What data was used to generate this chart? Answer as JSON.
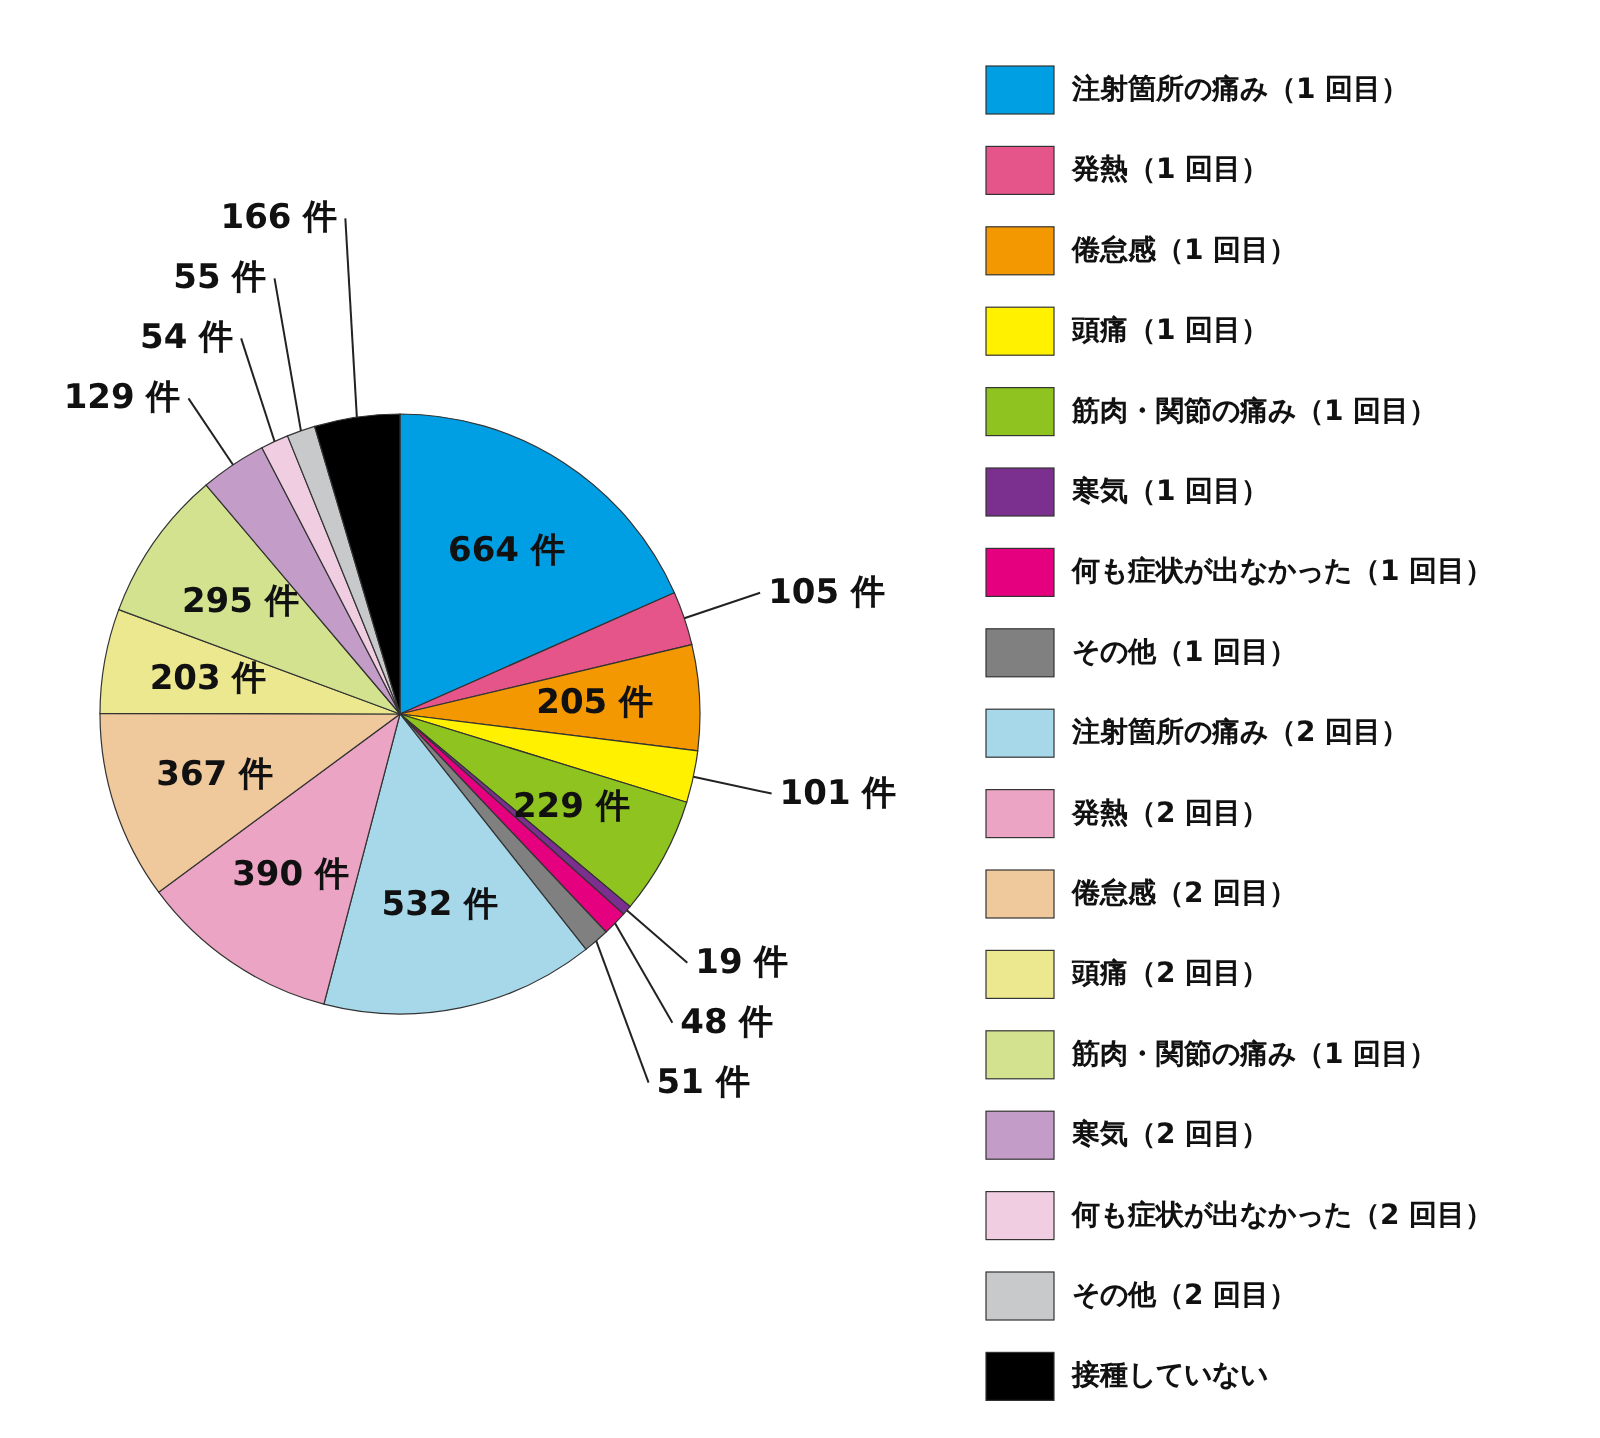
{
  "chart_data": {
    "type": "pie",
    "legend": "right",
    "categories": [
      "注射箇所の痛み（1 回目）",
      "発熱（1 回目）",
      "倦怠感（1 回目）",
      "頭痛（1 回目）",
      "筋肉・関節の痛み（1 回目）",
      "寒気（1 回目）",
      "何も症状が出なかった（1 回目）",
      "その他（1 回目）",
      "注射箇所の痛み（2 回目）",
      "発熱（2 回目）",
      "倦怠感（2 回目）",
      "頭痛（2 回目）",
      "筋肉・関節の痛み（1 回目）",
      "寒気（2 回目）",
      "何も症状が出なかった（2 回目）",
      "その他（2 回目）",
      "接種していない"
    ],
    "values": [
      664,
      105,
      205,
      101,
      229,
      19,
      48,
      51,
      532,
      390,
      367,
      203,
      295,
      129,
      54,
      55,
      166
    ],
    "value_labels": [
      "664 件",
      "105 件",
      "205 件",
      "101 件",
      "229 件",
      "19 件",
      "48 件",
      "51 件",
      "532 件",
      "390 件",
      "367 件",
      "203 件",
      "295 件",
      "129 件",
      "54 件",
      "55 件",
      "166 件"
    ],
    "colors": [
      "#009fe3",
      "#e5558a",
      "#f39800",
      "#fff100",
      "#8fc31f",
      "#7b2f8e",
      "#e4007f",
      "#808080",
      "#a6d8ea",
      "#eba4c4",
      "#efc99b",
      "#ece890",
      "#d2e28f",
      "#c49cc8",
      "#f0cde0",
      "#c8c9ca",
      "#000000"
    ]
  }
}
